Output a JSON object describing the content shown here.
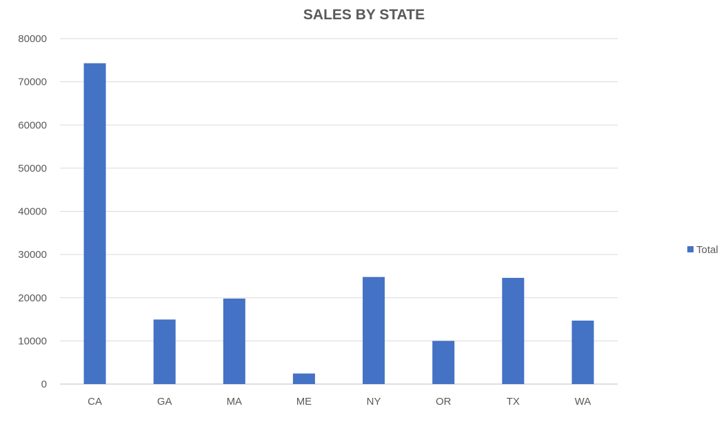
{
  "chart_data": {
    "type": "bar",
    "title": "SALES BY STATE",
    "xlabel": "",
    "ylabel": "",
    "categories": [
      "CA",
      "GA",
      "MA",
      "ME",
      "NY",
      "OR",
      "TX",
      "WA"
    ],
    "series": [
      {
        "name": "Total",
        "values": [
          74300,
          14950,
          19800,
          2450,
          24800,
          10000,
          24600,
          14700
        ]
      }
    ],
    "ylim": [
      0,
      80000
    ],
    "yticks": [
      "0",
      "10000",
      "20000",
      "30000",
      "40000",
      "50000",
      "60000",
      "70000",
      "80000"
    ],
    "grid": true,
    "legend_position": "right",
    "colors": {
      "bar": "#4472C4",
      "grid": "#d9d9d9",
      "text": "#595959",
      "title": "#595959"
    }
  }
}
